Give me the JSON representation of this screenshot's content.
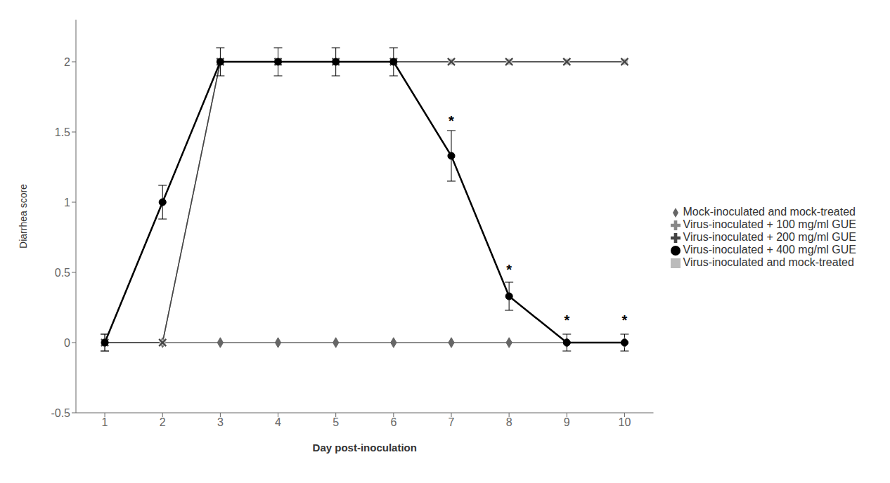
{
  "chart_data": {
    "type": "line",
    "x": [
      1,
      2,
      3,
      4,
      5,
      6,
      7,
      8,
      9,
      10
    ],
    "series": [
      {
        "name": "Mock-inoculated and mock-treated",
        "color": "#666666",
        "marker": "diamond",
        "line_style": "solid",
        "values": [
          0,
          0,
          0,
          0,
          0,
          0,
          0,
          0,
          0,
          0
        ],
        "errors": [
          0.06,
          0,
          0,
          0,
          0,
          0,
          0,
          0,
          0,
          0
        ]
      },
      {
        "name": "Virus-inoculated and mock-treated",
        "color": "#bbbbbb",
        "marker": "square",
        "line_style": "solid",
        "values": [
          0,
          0,
          2,
          2,
          2,
          2,
          2,
          2,
          2,
          2
        ],
        "errors": [
          0,
          0,
          0,
          0,
          0,
          0,
          0,
          0,
          0,
          0
        ]
      },
      {
        "name": "Virus-inoculated + 100 mg/ml GUE",
        "color": "#888888",
        "marker": "x",
        "line_style": "solid",
        "values": [
          0,
          0,
          2,
          2,
          2,
          2,
          2,
          2,
          2,
          2
        ],
        "errors": [
          0,
          0,
          0,
          0,
          0,
          0,
          0,
          0,
          0,
          0
        ]
      },
      {
        "name": "Virus-inoculated + 200 mg/ml GUE",
        "color": "#444444",
        "marker": "x",
        "line_style": "solid",
        "values": [
          0,
          0,
          2,
          2,
          2,
          2,
          2,
          2,
          2,
          2
        ],
        "errors": [
          0,
          0,
          0,
          0,
          0,
          0,
          0,
          0,
          0,
          0
        ]
      },
      {
        "name": "Virus-inoculated + 400 mg/ml GUE",
        "color": "#000000",
        "marker": "circle",
        "line_style": "solid",
        "values": [
          0,
          1.0,
          2.0,
          2.0,
          2.0,
          2.0,
          1.33,
          0.33,
          0.0,
          0.0
        ],
        "errors": [
          0.06,
          0.12,
          0.1,
          0.1,
          0.1,
          0.1,
          0.18,
          0.1,
          0.06,
          0.06
        ]
      }
    ],
    "annotations": [
      {
        "x": 7,
        "y": 1.58,
        "text": "*"
      },
      {
        "x": 8,
        "y": 0.52,
        "text": "*"
      },
      {
        "x": 9,
        "y": 0.16,
        "text": "*"
      },
      {
        "x": 10,
        "y": 0.16,
        "text": "*"
      }
    ],
    "xlabel": "Day post-inoculation",
    "ylabel": "Diarrhea score",
    "xlim": [
      0.5,
      10.5
    ],
    "xticks": [
      1,
      2,
      3,
      4,
      5,
      6,
      7,
      8,
      9,
      10
    ],
    "ylim": [
      -0.5,
      2.3
    ],
    "yticks": [
      -0.5,
      0,
      0.5,
      1,
      1.5,
      2
    ],
    "grid": false,
    "legend": "right"
  }
}
